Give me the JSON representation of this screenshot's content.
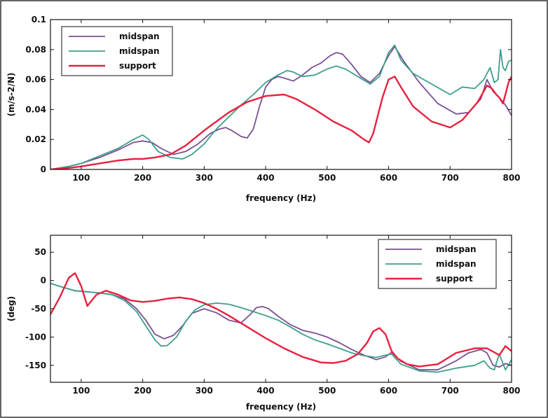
{
  "chart_data": [
    {
      "type": "line",
      "xlabel": "frequency (Hz)",
      "ylabel": "(m/s-2/N)",
      "xlim": [
        50,
        800
      ],
      "ylim": [
        0,
        0.1
      ],
      "xticks": [
        100,
        200,
        300,
        400,
        500,
        600,
        700,
        800
      ],
      "xtick_labels": [
        "100",
        "200",
        "300",
        "400",
        "500",
        "600",
        "700",
        "800"
      ],
      "yticks": [
        0,
        0.02,
        0.04,
        0.06,
        0.08,
        0.1
      ],
      "ytick_labels": [
        "0",
        "0.02",
        "0.04",
        "0.06",
        "0.08",
        "0.1"
      ],
      "legend": "top-left",
      "grid": false,
      "series": [
        {
          "name": "midspan",
          "color": "#7a4f93",
          "x": [
            50,
            80,
            100,
            130,
            160,
            185,
            200,
            215,
            230,
            250,
            270,
            290,
            310,
            325,
            335,
            345,
            360,
            370,
            380,
            390,
            400,
            410,
            420,
            430,
            445,
            460,
            475,
            490,
            505,
            515,
            525,
            540,
            555,
            570,
            585,
            600,
            610,
            625,
            650,
            680,
            710,
            730,
            750,
            760,
            770,
            780,
            790,
            800
          ],
          "y": [
            0,
            0.002,
            0.004,
            0.008,
            0.013,
            0.018,
            0.019,
            0.018,
            0.014,
            0.01,
            0.012,
            0.017,
            0.024,
            0.027,
            0.028,
            0.026,
            0.022,
            0.021,
            0.027,
            0.042,
            0.055,
            0.06,
            0.062,
            0.061,
            0.059,
            0.063,
            0.068,
            0.071,
            0.076,
            0.078,
            0.077,
            0.07,
            0.062,
            0.058,
            0.064,
            0.076,
            0.082,
            0.072,
            0.058,
            0.044,
            0.037,
            0.038,
            0.047,
            0.06,
            0.052,
            0.048,
            0.043,
            0.036
          ]
        },
        {
          "name": "midspan",
          "color": "#3e9e8c",
          "x": [
            50,
            80,
            100,
            130,
            160,
            185,
            200,
            210,
            225,
            245,
            265,
            280,
            300,
            320,
            340,
            360,
            380,
            400,
            420,
            435,
            445,
            460,
            480,
            500,
            515,
            530,
            550,
            570,
            585,
            600,
            610,
            620,
            640,
            670,
            700,
            720,
            740,
            755,
            765,
            772,
            778,
            782,
            786,
            790,
            795,
            800
          ],
          "y": [
            0,
            0.002,
            0.004,
            0.009,
            0.014,
            0.02,
            0.023,
            0.02,
            0.012,
            0.008,
            0.007,
            0.01,
            0.017,
            0.027,
            0.035,
            0.043,
            0.05,
            0.058,
            0.063,
            0.066,
            0.065,
            0.062,
            0.063,
            0.067,
            0.069,
            0.067,
            0.062,
            0.057,
            0.062,
            0.078,
            0.083,
            0.073,
            0.064,
            0.057,
            0.05,
            0.055,
            0.054,
            0.06,
            0.068,
            0.058,
            0.06,
            0.08,
            0.068,
            0.066,
            0.072,
            0.073
          ]
        },
        {
          "name": "support",
          "color": "#e8213f",
          "x": [
            50,
            80,
            100,
            130,
            160,
            185,
            200,
            220,
            245,
            270,
            300,
            340,
            370,
            400,
            430,
            450,
            480,
            510,
            540,
            560,
            568,
            575,
            590,
            600,
            610,
            620,
            640,
            670,
            700,
            720,
            745,
            760,
            768,
            775,
            780,
            786,
            790,
            795,
            800
          ],
          "y": [
            0,
            0.001,
            0.002,
            0.004,
            0.006,
            0.007,
            0.007,
            0.008,
            0.01,
            0.016,
            0.026,
            0.038,
            0.045,
            0.049,
            0.05,
            0.047,
            0.04,
            0.032,
            0.026,
            0.02,
            0.018,
            0.024,
            0.048,
            0.06,
            0.062,
            0.055,
            0.042,
            0.032,
            0.028,
            0.033,
            0.045,
            0.056,
            0.054,
            0.05,
            0.048,
            0.044,
            0.05,
            0.058,
            0.062
          ]
        }
      ]
    },
    {
      "type": "line",
      "xlabel": "frequency (Hz)",
      "ylabel": "(deg)",
      "xlim": [
        50,
        800
      ],
      "ylim": [
        -180,
        80
      ],
      "xticks": [
        100,
        200,
        300,
        400,
        500,
        600,
        700,
        800
      ],
      "xtick_labels": [
        "100",
        "200",
        "300",
        "400",
        "500",
        "600",
        "700",
        "800"
      ],
      "yticks": [
        50,
        0,
        -50,
        -100,
        -150
      ],
      "ytick_labels": [
        "50",
        "0",
        "-50",
        "-100",
        "-150"
      ],
      "legend": "top-right",
      "grid": false,
      "series": [
        {
          "name": "midspan",
          "color": "#7a4f93",
          "x": [
            50,
            70,
            90,
            110,
            130,
            150,
            170,
            190,
            205,
            220,
            235,
            250,
            265,
            280,
            300,
            320,
            340,
            360,
            375,
            385,
            395,
            405,
            420,
            440,
            460,
            480,
            500,
            520,
            540,
            560,
            580,
            595,
            605,
            620,
            650,
            680,
            710,
            730,
            750,
            760,
            770,
            780,
            790,
            800
          ],
          "y": [
            -5,
            -12,
            -18,
            -20,
            -22,
            -25,
            -32,
            -50,
            -70,
            -95,
            -103,
            -97,
            -80,
            -58,
            -50,
            -57,
            -70,
            -75,
            -60,
            -48,
            -46,
            -50,
            -63,
            -78,
            -88,
            -93,
            -100,
            -110,
            -122,
            -132,
            -140,
            -135,
            -127,
            -143,
            -158,
            -158,
            -142,
            -128,
            -122,
            -128,
            -150,
            -153,
            -147,
            -150
          ]
        },
        {
          "name": "midspan",
          "color": "#3e9e8c",
          "x": [
            50,
            70,
            90,
            110,
            130,
            150,
            170,
            190,
            205,
            220,
            230,
            240,
            255,
            270,
            285,
            300,
            320,
            340,
            360,
            380,
            400,
            420,
            440,
            460,
            480,
            500,
            520,
            540,
            560,
            580,
            595,
            605,
            620,
            650,
            680,
            710,
            740,
            755,
            765,
            772,
            780,
            790,
            800
          ],
          "y": [
            -5,
            -12,
            -18,
            -20,
            -22,
            -25,
            -35,
            -55,
            -80,
            -105,
            -116,
            -115,
            -100,
            -72,
            -52,
            -43,
            -40,
            -42,
            -48,
            -55,
            -62,
            -70,
            -82,
            -95,
            -105,
            -112,
            -120,
            -128,
            -133,
            -136,
            -132,
            -130,
            -148,
            -160,
            -162,
            -155,
            -150,
            -142,
            -155,
            -158,
            -130,
            -158,
            -140
          ]
        },
        {
          "name": "support",
          "color": "#e8213f",
          "x": [
            50,
            65,
            80,
            90,
            100,
            110,
            125,
            140,
            160,
            180,
            200,
            220,
            240,
            260,
            280,
            300,
            320,
            340,
            370,
            400,
            430,
            460,
            490,
            510,
            530,
            550,
            565,
            575,
            585,
            595,
            605,
            615,
            630,
            650,
            680,
            710,
            740,
            760,
            772,
            780,
            790,
            800
          ],
          "y": [
            -60,
            -30,
            5,
            13,
            -10,
            -45,
            -25,
            -18,
            -25,
            -35,
            -38,
            -36,
            -32,
            -30,
            -33,
            -40,
            -50,
            -62,
            -82,
            -102,
            -120,
            -135,
            -145,
            -146,
            -142,
            -130,
            -110,
            -90,
            -84,
            -95,
            -125,
            -138,
            -148,
            -152,
            -148,
            -128,
            -120,
            -120,
            -127,
            -132,
            -116,
            -125
          ]
        }
      ]
    }
  ]
}
